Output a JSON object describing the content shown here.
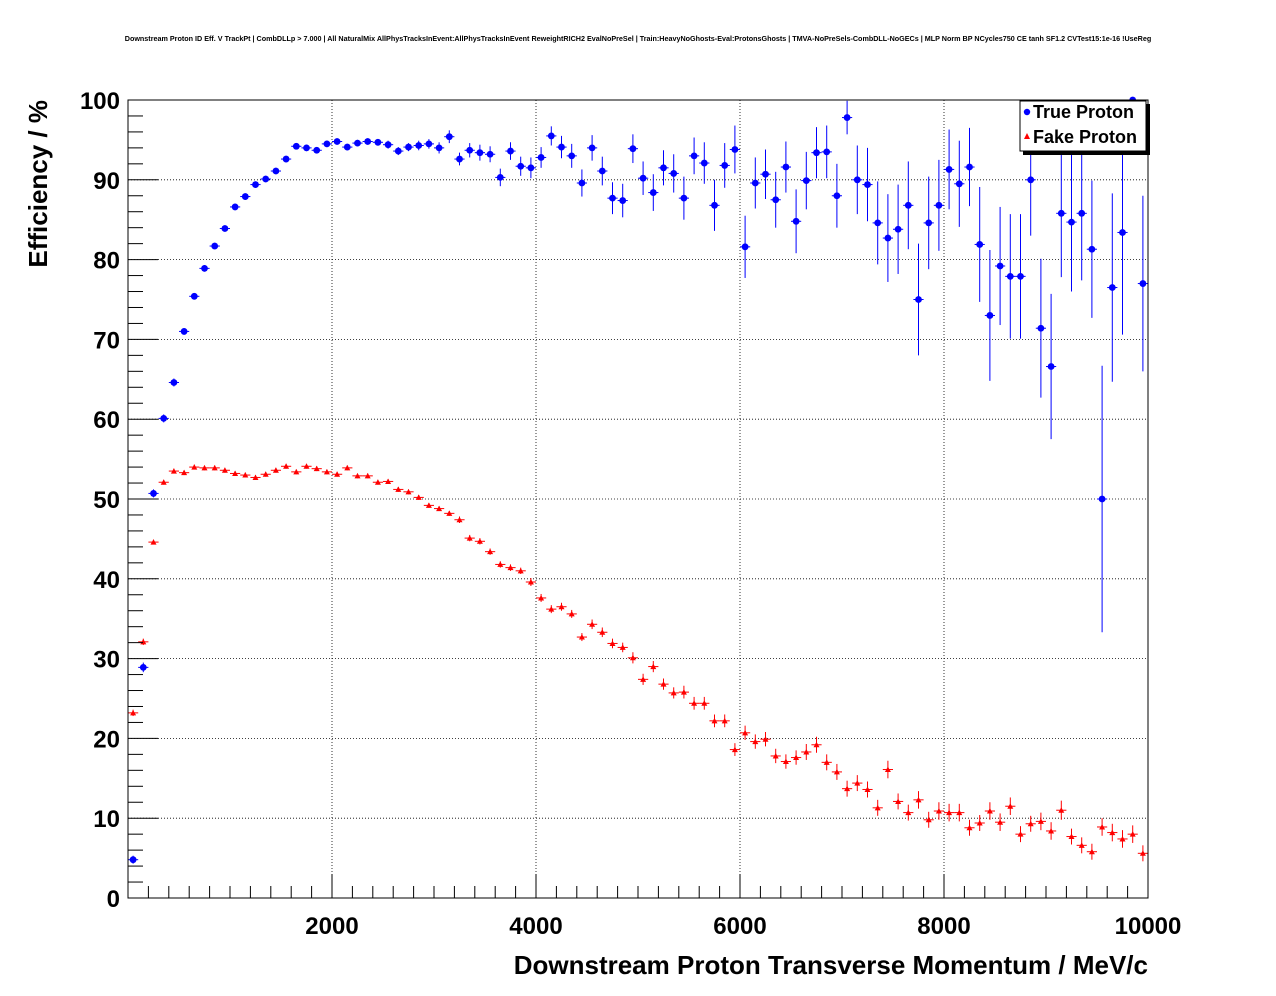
{
  "chart_data": {
    "type": "scatter",
    "title": "Downstream Proton ID Eff. V TrackPt | CombDLLp > 7.000 | All NaturalMix AllPhysTracksInEvent:AllPhysTracksInEvent ReweightRICH2 EvalNoPreSel | Train:HeavyNoGhosts-Eval:ProtonsGhosts | TMVA-NoPreSels-CombDLL-NoGECs | MLP Norm BP NCycles750 CE tanh SF1.2 CVTest15:1e-16 !UseReg",
    "xlabel": "Downstream Proton Transverse Momentum / MeV/c",
    "ylabel": "Efficiency / %",
    "xlim": [
      0,
      10000
    ],
    "ylim": [
      0,
      100
    ],
    "x_ticks": [
      2000,
      4000,
      6000,
      8000,
      10000
    ],
    "y_ticks": [
      0,
      10,
      20,
      30,
      40,
      50,
      60,
      70,
      80,
      90,
      100
    ],
    "x_tick_labels": [
      "2000",
      "4000",
      "6000",
      "8000",
      "10000"
    ],
    "y_tick_labels": [
      "0",
      "10",
      "20",
      "30",
      "40",
      "50",
      "60",
      "70",
      "80",
      "90",
      "100"
    ],
    "grid": true,
    "legend_position": "top-right",
    "bin_width": 100,
    "series": [
      {
        "name": "True Proton",
        "color": "#0000ff",
        "marker": "circle",
        "x": [
          50,
          150,
          250,
          350,
          450,
          550,
          650,
          750,
          850,
          950,
          1050,
          1150,
          1250,
          1350,
          1450,
          1550,
          1650,
          1750,
          1850,
          1950,
          2050,
          2150,
          2250,
          2350,
          2450,
          2550,
          2650,
          2750,
          2850,
          2950,
          3050,
          3150,
          3250,
          3350,
          3450,
          3550,
          3650,
          3750,
          3850,
          3950,
          4050,
          4150,
          4250,
          4350,
          4450,
          4550,
          4650,
          4750,
          4850,
          4950,
          5050,
          5150,
          5250,
          5350,
          5450,
          5550,
          5650,
          5750,
          5850,
          5950,
          6050,
          6150,
          6250,
          6350,
          6450,
          6550,
          6650,
          6750,
          6850,
          6950,
          7050,
          7150,
          7250,
          7350,
          7450,
          7550,
          7650,
          7750,
          7850,
          7950,
          8050,
          8150,
          8250,
          8350,
          8450,
          8550,
          8650,
          8750,
          8850,
          8950,
          9050,
          9150,
          9250,
          9350,
          9450,
          9550,
          9650,
          9750,
          9850,
          9950
        ],
        "y": [
          4.8,
          28.9,
          50.7,
          60.1,
          64.6,
          71.0,
          75.4,
          78.9,
          81.7,
          83.9,
          86.6,
          87.9,
          89.4,
          90.1,
          91.1,
          92.6,
          94.2,
          94.0,
          93.7,
          94.5,
          94.8,
          94.1,
          94.6,
          94.8,
          94.7,
          94.4,
          93.6,
          94.1,
          94.3,
          94.5,
          94.0,
          95.4,
          92.6,
          93.7,
          93.4,
          93.2,
          90.3,
          93.6,
          91.7,
          91.5,
          92.8,
          95.5,
          94.1,
          93.0,
          89.6,
          94.0,
          91.1,
          87.7,
          87.4,
          93.9,
          90.2,
          88.4,
          91.5,
          90.8,
          87.7,
          93.0,
          92.1,
          86.8,
          91.8,
          93.8,
          81.6,
          89.6,
          90.7,
          87.5,
          91.6,
          84.8,
          89.9,
          93.4,
          93.5,
          88.0,
          97.8,
          90.0,
          89.4,
          84.6,
          82.7,
          83.8,
          86.8,
          75.0,
          84.6,
          86.8,
          91.3,
          89.5,
          91.6,
          81.9,
          73.0,
          79.2,
          77.9,
          77.9,
          90.0,
          71.4,
          66.6,
          85.8,
          84.7,
          85.8,
          81.3,
          50.0,
          76.5,
          83.4,
          100.0,
          77.0
        ],
        "err": [
          0.5,
          0.6,
          0.5,
          0.5,
          0.5,
          0.4,
          0.4,
          0.4,
          0.4,
          0.4,
          0.4,
          0.4,
          0.4,
          0.4,
          0.4,
          0.4,
          0.4,
          0.4,
          0.4,
          0.4,
          0.4,
          0.4,
          0.4,
          0.4,
          0.4,
          0.5,
          0.5,
          0.5,
          0.6,
          0.6,
          0.7,
          0.8,
          0.8,
          0.9,
          1.0,
          1.0,
          1.1,
          1.1,
          1.2,
          1.3,
          1.3,
          1.2,
          1.4,
          1.5,
          1.7,
          1.6,
          1.8,
          2.0,
          2.1,
          1.8,
          2.1,
          2.3,
          2.2,
          2.4,
          2.7,
          2.3,
          2.6,
          3.2,
          2.8,
          3.0,
          3.9,
          3.2,
          3.1,
          3.5,
          3.2,
          4.0,
          3.6,
          3.2,
          3.3,
          4.0,
          2.1,
          4.3,
          4.6,
          5.2,
          5.5,
          5.6,
          5.5,
          7.0,
          5.8,
          5.7,
          5.0,
          5.4,
          4.9,
          7.2,
          8.2,
          7.4,
          7.8,
          7.8,
          7.0,
          8.7,
          9.1,
          8.0,
          8.7,
          8.4,
          8.6,
          16.7,
          11.8,
          12.8,
          0.5,
          11.0
        ]
      },
      {
        "name": "Fake Proton",
        "color": "#ff0000",
        "marker": "triangle",
        "x": [
          50,
          150,
          250,
          350,
          450,
          550,
          650,
          750,
          850,
          950,
          1050,
          1150,
          1250,
          1350,
          1450,
          1550,
          1650,
          1750,
          1850,
          1950,
          2050,
          2150,
          2250,
          2350,
          2450,
          2550,
          2650,
          2750,
          2850,
          2950,
          3050,
          3150,
          3250,
          3350,
          3450,
          3550,
          3650,
          3750,
          3850,
          3950,
          4050,
          4150,
          4250,
          4350,
          4450,
          4550,
          4650,
          4750,
          4850,
          4950,
          5050,
          5150,
          5250,
          5350,
          5450,
          5550,
          5650,
          5750,
          5850,
          5950,
          6050,
          6150,
          6250,
          6350,
          6450,
          6550,
          6650,
          6750,
          6850,
          6950,
          7050,
          7150,
          7250,
          7350,
          7450,
          7550,
          7650,
          7750,
          7850,
          7950,
          8050,
          8150,
          8250,
          8350,
          8450,
          8550,
          8650,
          8750,
          8850,
          8950,
          9050,
          9150,
          9250,
          9350,
          9450,
          9550,
          9650,
          9750,
          9850,
          9950
        ],
        "y": [
          23.2,
          32.1,
          44.6,
          52.1,
          53.5,
          53.3,
          54.0,
          53.9,
          53.9,
          53.6,
          53.2,
          53.0,
          52.7,
          53.1,
          53.6,
          54.1,
          53.4,
          54.1,
          53.8,
          53.4,
          53.1,
          53.9,
          52.9,
          52.9,
          52.1,
          52.2,
          51.2,
          50.9,
          50.2,
          49.2,
          48.8,
          48.2,
          47.4,
          45.1,
          44.7,
          43.4,
          41.8,
          41.4,
          41.0,
          39.6,
          37.6,
          36.2,
          36.5,
          35.6,
          32.7,
          34.3,
          33.3,
          31.9,
          31.4,
          30.1,
          27.4,
          29.0,
          26.8,
          25.7,
          25.8,
          24.4,
          24.4,
          22.2,
          22.2,
          18.6,
          20.7,
          19.6,
          19.9,
          17.8,
          17.1,
          17.6,
          18.3,
          19.2,
          17.0,
          15.8,
          13.7,
          14.4,
          13.6,
          11.3,
          16.1,
          12.1,
          10.7,
          12.3,
          9.8,
          10.9,
          10.7,
          10.7,
          8.8,
          9.4,
          10.9,
          9.5,
          11.5,
          8.0,
          9.3,
          9.6,
          8.4,
          11.0,
          7.7,
          6.6,
          5.8,
          8.9,
          8.2,
          7.4,
          8.0,
          5.6
        ],
        "err": [
          0.4,
          0.4,
          0.3,
          0.3,
          0.3,
          0.3,
          0.3,
          0.3,
          0.3,
          0.3,
          0.3,
          0.3,
          0.3,
          0.3,
          0.3,
          0.3,
          0.3,
          0.3,
          0.3,
          0.3,
          0.3,
          0.3,
          0.3,
          0.3,
          0.3,
          0.3,
          0.3,
          0.3,
          0.3,
          0.3,
          0.3,
          0.3,
          0.4,
          0.4,
          0.4,
          0.4,
          0.4,
          0.4,
          0.4,
          0.5,
          0.5,
          0.5,
          0.5,
          0.5,
          0.5,
          0.6,
          0.6,
          0.6,
          0.6,
          0.7,
          0.7,
          0.7,
          0.7,
          0.7,
          0.8,
          0.8,
          0.8,
          0.8,
          0.8,
          0.8,
          0.9,
          0.9,
          0.9,
          0.9,
          0.9,
          0.9,
          1.0,
          1.0,
          1.0,
          1.0,
          1.0,
          1.0,
          1.0,
          1.0,
          1.1,
          1.0,
          1.0,
          1.1,
          1.0,
          1.1,
          1.1,
          1.1,
          1.0,
          1.0,
          1.1,
          1.1,
          1.1,
          1.0,
          1.0,
          1.1,
          1.1,
          1.2,
          1.0,
          1.0,
          1.0,
          1.1,
          1.1,
          1.1,
          1.1,
          1.0
        ]
      }
    ]
  }
}
